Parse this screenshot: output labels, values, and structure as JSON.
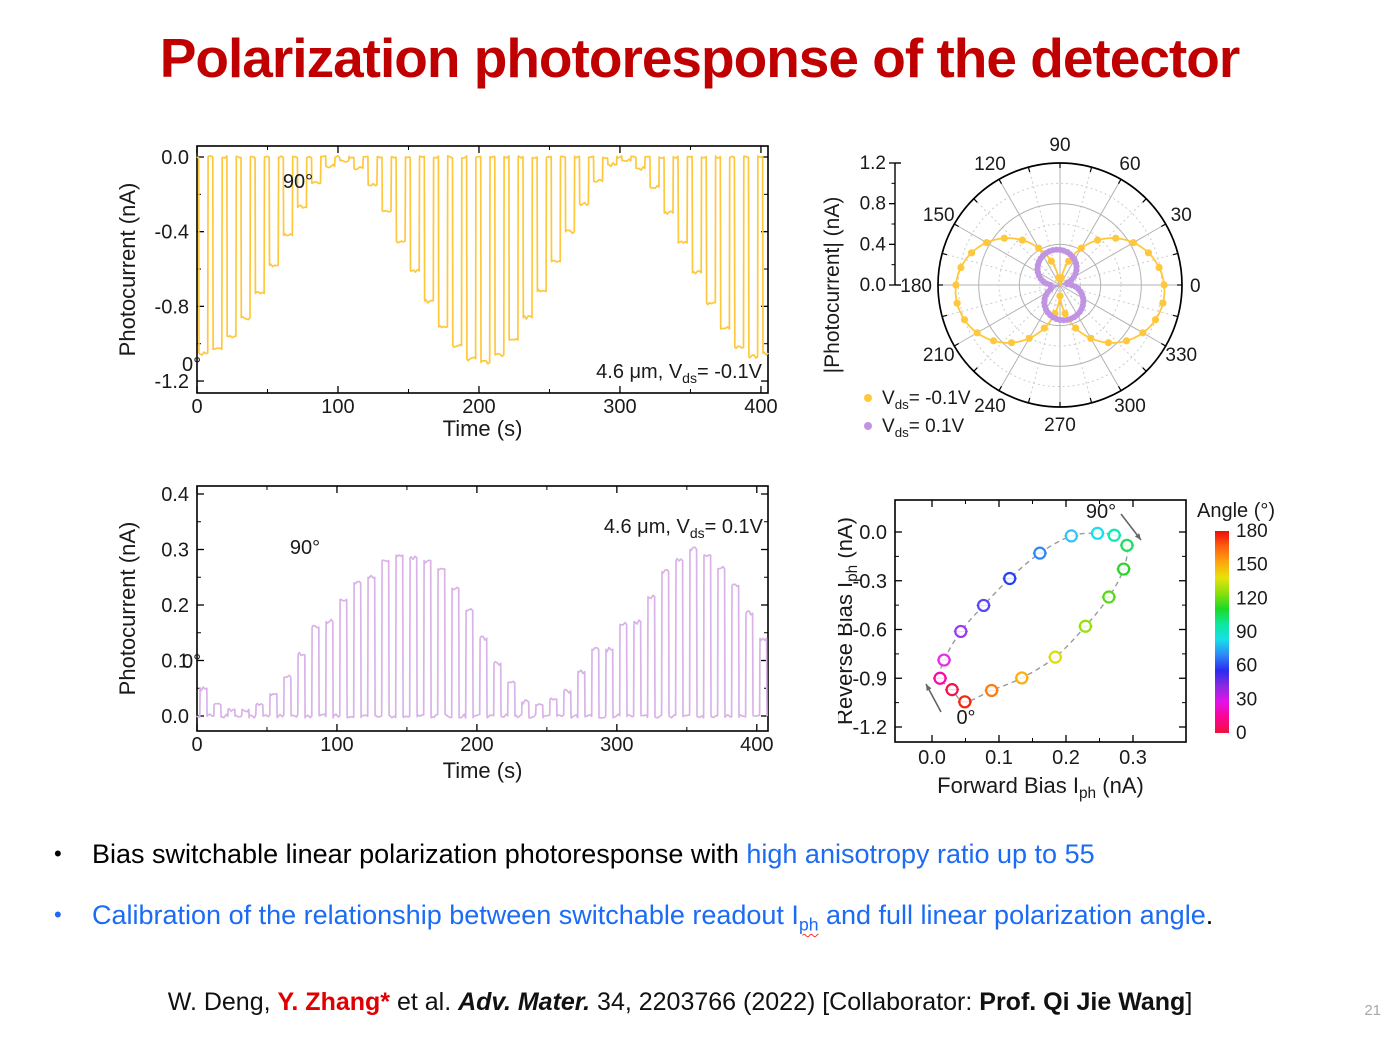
{
  "slide": {
    "title": "Polarization photoresponse of the detector",
    "title_color": "#c00000",
    "page_number": "21",
    "accent_blue": "#1b6bf5"
  },
  "bullets": {
    "marker": "•",
    "b1_black": "Bias switchable linear polarization photoresponse with ",
    "b1_blue": "high anisotropy ratio up to 55",
    "b2_pre": "Calibration of the relationship between switchable readout I",
    "b2_sub": "ph",
    "b2_post": " and full linear polarization angle",
    "b2_period": "."
  },
  "citation": {
    "red": "#e00000",
    "parts": [
      "W. Deng, ",
      "Y. Zhang*",
      " et al. ",
      "Adv. Mater.",
      " 34, 2203766 (2022) [Collaborator: ",
      "Prof. Qi Jie Wang",
      "]"
    ]
  },
  "chart_data": [
    {
      "id": "negative-bias-time-trace",
      "type": "line",
      "xlabel": "Time (s)",
      "ylabel": "Photocurrent (nA)",
      "xticks": [
        0,
        100,
        200,
        300,
        400
      ],
      "xtick_labels": [
        "0",
        "100",
        "200",
        "300",
        "400"
      ],
      "xminor": [
        50,
        150,
        250,
        350
      ],
      "yticks": [
        0,
        -0.4,
        -0.8,
        -1.2
      ],
      "ytick_labels": [
        "0.0",
        "-0.4",
        "-0.8",
        "-1.2"
      ],
      "yminor": [
        -0.2,
        -0.6,
        -1.0
      ],
      "xlim": [
        0,
        405
      ],
      "ylim": [
        -1.26,
        0.06
      ],
      "color": "#ffc83c",
      "pulse_period_s": 10,
      "pulse_on_delay_s": 1.2,
      "pulse_on_len_s": 6.4,
      "pulse_sign": -1,
      "pulse_values_nA": [
        1.05,
        1.03,
        0.96,
        0.86,
        0.73,
        0.58,
        0.42,
        0.27,
        0.14,
        0.05,
        0.02,
        0.06,
        0.15,
        0.29,
        0.45,
        0.61,
        0.77,
        0.91,
        1.01,
        1.08,
        1.1,
        1.06,
        0.98,
        0.86,
        0.72,
        0.56,
        0.4,
        0.25,
        0.13,
        0.04,
        0.02,
        0.06,
        0.16,
        0.3,
        0.46,
        0.62,
        0.78,
        0.92,
        1.02,
        1.07,
        1.05
      ],
      "annotations": {
        "deg90": "90°",
        "deg0": "0°",
        "condition": [
          [
            "4.6 μm, V",
            0
          ],
          [
            "ds",
            1
          ],
          [
            "= -0.1V",
            0
          ]
        ]
      }
    },
    {
      "id": "polar-photocurrent",
      "type": "polar",
      "rlabel": "|Photocurrent| (nA)",
      "rtick_labels": [
        "0.0",
        "0.4",
        "0.8",
        "1.2"
      ],
      "rticks": [
        0,
        0.4,
        0.8,
        1.2
      ],
      "rminor": [
        0.2,
        0.6,
        1.0
      ],
      "rmax_nA": 1.2,
      "theta_tick_labels": [
        "0",
        "30",
        "60",
        "90",
        "120",
        "150",
        "180",
        "210",
        "240",
        "270",
        "300",
        "330"
      ],
      "series": [
        {
          "label": [
            [
              "V",
              0
            ],
            [
              "ds",
              1
            ],
            [
              "= -0.1V",
              0
            ]
          ],
          "color": "#ffc83c",
          "amplitude_nA": 1.03,
          "lobe_axes_deg": [
            -6,
            186
          ],
          "shape_power": 1.0,
          "marker_step_deg": 10
        },
        {
          "label": [
            [
              "V",
              0
            ],
            [
              "ds",
              1
            ],
            [
              "= 0.1V",
              0
            ]
          ],
          "color": "#c193e3",
          "amplitude_nA": 0.35,
          "lobe_axes_deg": [
            100,
            283
          ],
          "shape_power": 0.75,
          "marker_step_deg": 6
        }
      ]
    },
    {
      "id": "positive-bias-time-trace",
      "type": "line",
      "xlabel": "Time (s)",
      "ylabel": "Photocurrent (nA)",
      "xticks": [
        0,
        100,
        200,
        300,
        400
      ],
      "xtick_labels": [
        "0",
        "100",
        "200",
        "300",
        "400"
      ],
      "xminor": [
        50,
        150,
        250,
        350
      ],
      "yticks": [
        0,
        0.1,
        0.2,
        0.3,
        0.4
      ],
      "ytick_labels": [
        "0.0",
        "0.1",
        "0.2",
        "0.3",
        "0.4"
      ],
      "yminor": [
        0.05,
        0.15,
        0.25,
        0.35
      ],
      "xlim": [
        0,
        408
      ],
      "ylim": [
        -0.03,
        0.43
      ],
      "color": "#d9b3e8",
      "pulse_period_s": 10,
      "pulse_on_delay_s": 2.0,
      "pulse_on_len_s": 5.0,
      "pulse_sign": 1,
      "pulse_values_nA": [
        0.05,
        0.02,
        0.012,
        0.012,
        0.02,
        0.04,
        0.07,
        0.11,
        0.16,
        0.17,
        0.21,
        0.24,
        0.25,
        0.28,
        0.29,
        0.285,
        0.28,
        0.265,
        0.23,
        0.19,
        0.14,
        0.095,
        0.06,
        0.025,
        0.02,
        0.03,
        0.045,
        0.08,
        0.12,
        0.12,
        0.165,
        0.17,
        0.215,
        0.26,
        0.28,
        0.3,
        0.29,
        0.265,
        0.235,
        0.185,
        0.14
      ],
      "annotations": {
        "deg90": "90°",
        "deg0": "0°",
        "condition": [
          [
            "4.6 μm, V",
            0
          ],
          [
            "ds",
            1
          ],
          [
            "= 0.1V",
            0
          ]
        ]
      }
    },
    {
      "id": "bias-ellipse-scatter",
      "type": "scatter",
      "xlabel_parts": [
        [
          "Forward Bias I",
          0
        ],
        [
          "ph",
          1
        ],
        [
          " (nA)",
          0
        ]
      ],
      "ylabel_parts": [
        [
          "Reverse Bias I",
          0
        ],
        [
          "ph",
          1
        ],
        [
          " (nA)",
          0
        ]
      ],
      "xticks": [
        0,
        0.1,
        0.2,
        0.3
      ],
      "xtick_labels": [
        "0.0",
        "0.1",
        "0.2",
        "0.3"
      ],
      "xminor": [
        0.05,
        0.15,
        0.25
      ],
      "yticks": [
        0,
        -0.3,
        -0.6,
        -0.9,
        -1.2
      ],
      "ytick_labels": [
        "0.0",
        "-0.3",
        "-0.6",
        "-0.9",
        "-1.2"
      ],
      "yminor": [
        -0.15,
        -0.45,
        -0.75,
        -1.05
      ],
      "points": [
        {
          "angle_deg": 0,
          "x": 0.03,
          "y": -0.97,
          "color": "#f5114d"
        },
        {
          "angle_deg": 10,
          "x": 0.012,
          "y": -0.9,
          "color": "#fa07aa"
        },
        {
          "angle_deg": 20,
          "x": 0.018,
          "y": -0.788,
          "color": "#e52ce8"
        },
        {
          "angle_deg": 30,
          "x": 0.043,
          "y": -0.612,
          "color": "#9d3af0"
        },
        {
          "angle_deg": 40,
          "x": 0.077,
          "y": -0.452,
          "color": "#5a46f5"
        },
        {
          "angle_deg": 50,
          "x": 0.116,
          "y": -0.286,
          "color": "#2742f0"
        },
        {
          "angle_deg": 60,
          "x": 0.161,
          "y": -0.13,
          "color": "#2e86f7"
        },
        {
          "angle_deg": 70,
          "x": 0.208,
          "y": -0.024,
          "color": "#38c2f5"
        },
        {
          "angle_deg": 80,
          "x": 0.247,
          "y": -0.008,
          "color": "#15dfe8"
        },
        {
          "angle_deg": 90,
          "x": 0.272,
          "y": -0.02,
          "color": "#0de8b6"
        },
        {
          "angle_deg": 100,
          "x": 0.291,
          "y": -0.082,
          "color": "#1ddf5f"
        },
        {
          "angle_deg": 110,
          "x": 0.286,
          "y": -0.228,
          "color": "#2cd32c"
        },
        {
          "angle_deg": 120,
          "x": 0.264,
          "y": -0.4,
          "color": "#56d916"
        },
        {
          "angle_deg": 130,
          "x": 0.229,
          "y": -0.58,
          "color": "#96e00c"
        },
        {
          "angle_deg": 140,
          "x": 0.184,
          "y": -0.77,
          "color": "#e0da09"
        },
        {
          "angle_deg": 150,
          "x": 0.134,
          "y": -0.898,
          "color": "#ffad0a"
        },
        {
          "angle_deg": 160,
          "x": 0.089,
          "y": -0.975,
          "color": "#ff7b10"
        },
        {
          "angle_deg": 170,
          "x": 0.049,
          "y": -1.045,
          "color": "#f5260d"
        }
      ],
      "colorbar": {
        "title": "Angle (°)",
        "tick_labels": [
          "0",
          "30",
          "60",
          "90",
          "120",
          "150",
          "180"
        ],
        "ticks": [
          0,
          30,
          60,
          90,
          120,
          150,
          180
        ],
        "stops_bottom_to_top": [
          "#f2103c",
          "#fa0593",
          "#e312ea",
          "#8b2be0",
          "#2b2bf0",
          "#2e86f7",
          "#17dfe8",
          "#0ee89d",
          "#1cd926",
          "#8ce00c",
          "#e8e20a",
          "#ffa50d",
          "#ff5f10",
          "#f00a0a"
        ]
      },
      "annotations": {
        "deg90": "90°",
        "deg0": "0°"
      }
    }
  ]
}
